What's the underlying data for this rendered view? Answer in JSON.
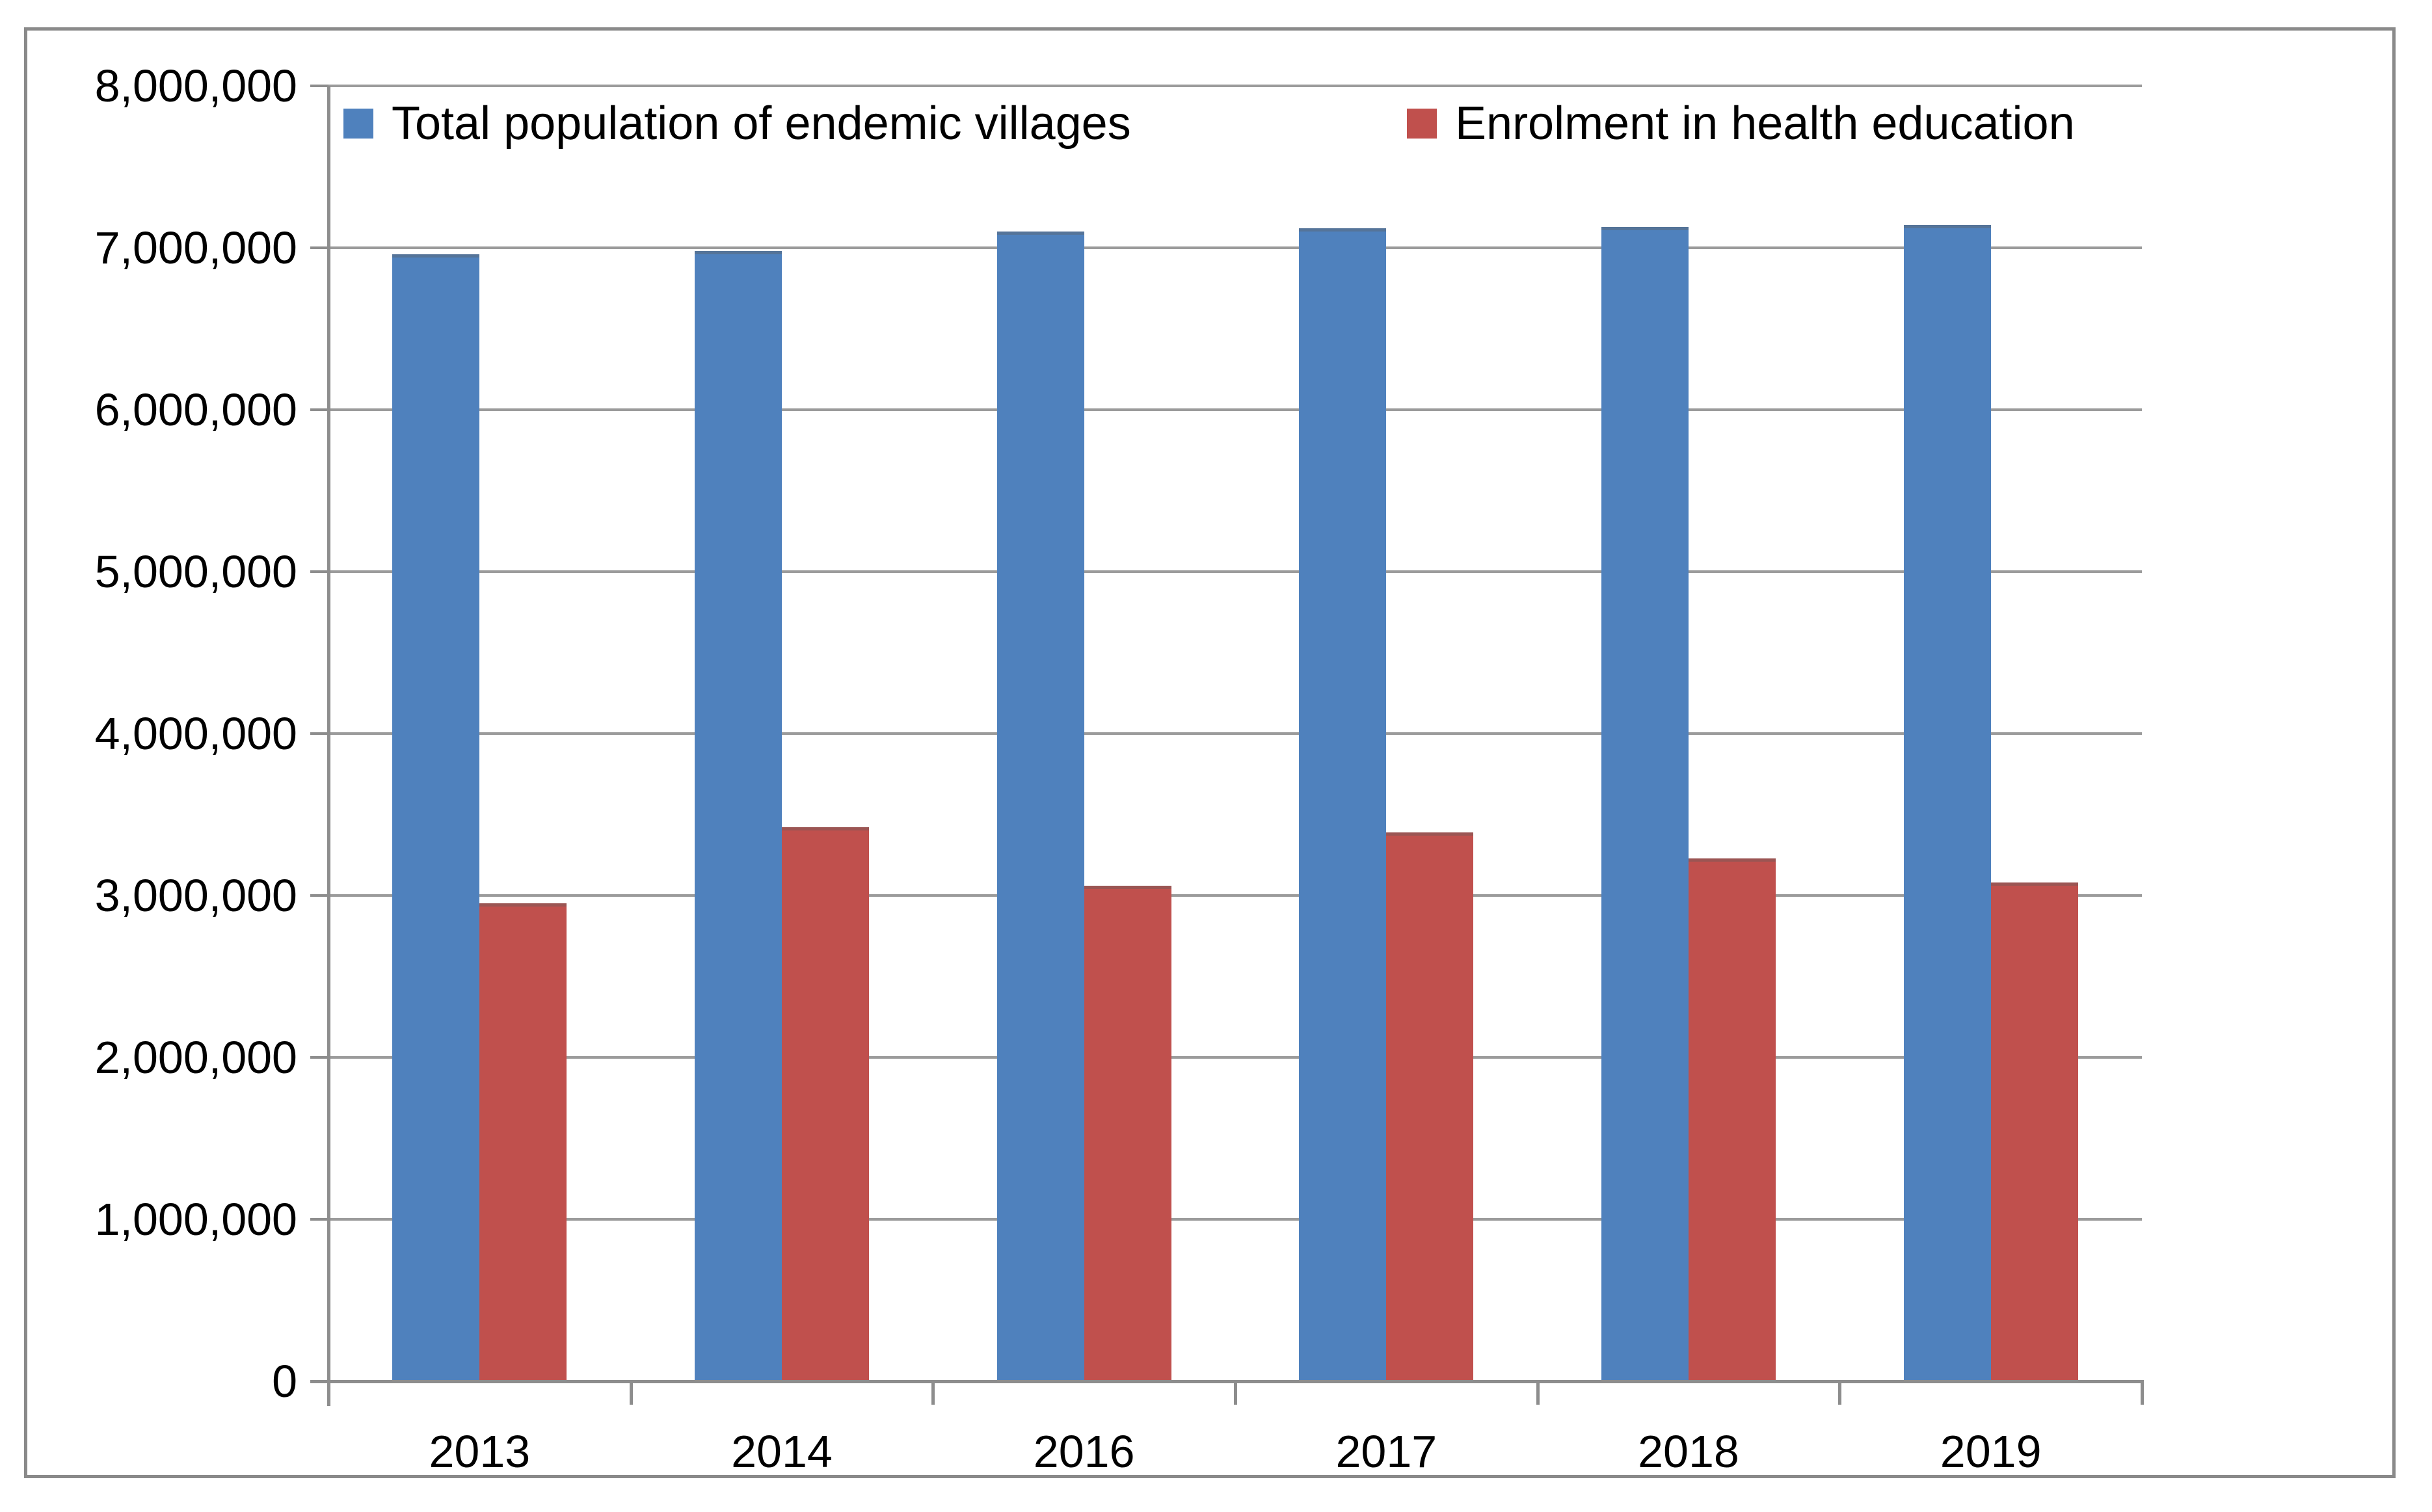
{
  "chart_data": {
    "type": "bar",
    "title": "",
    "categories": [
      "2013",
      "2014",
      "2016",
      "2017",
      "2018",
      "2019"
    ],
    "series": [
      {
        "name": "Total population of endemic villages",
        "color": "#4F81BD",
        "values": [
          6960000,
          6980000,
          7100000,
          7120000,
          7130000,
          7140000
        ]
      },
      {
        "name": "Enrolment in health education",
        "color": "#C0504D",
        "values": [
          2950000,
          3420000,
          3060000,
          3390000,
          3230000,
          3080000
        ]
      }
    ],
    "xlabel": "",
    "ylabel": "",
    "ylim": [
      0,
      8000000
    ],
    "y_tick_step": 1000000,
    "y_tick_labels": [
      "8,000,000",
      "7,000,000",
      "6,000,000",
      "5,000,000",
      "4,000,000",
      "3,000,000",
      "2,000,000",
      "1,000,000",
      "0"
    ],
    "grid": "horizontal",
    "legend_position": "top-inside"
  },
  "colors": {
    "series1": "#4F81BD",
    "series2": "#C0504D",
    "gridline": "#9b9b9b",
    "axis": "#8d8d8d",
    "figure_border": "#8a8a8a",
    "background": "#ffffff",
    "text": "#000000"
  }
}
